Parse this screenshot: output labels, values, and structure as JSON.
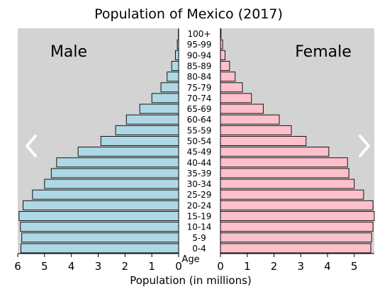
{
  "chart_data": {
    "type": "bar",
    "title": "Population of Mexico (2017)",
    "xlabel": "Population (in millions)",
    "ylabel": "Age",
    "xlim": [
      0,
      6
    ],
    "xticks": [
      "0",
      "1",
      "2",
      "3",
      "4",
      "5",
      "6"
    ],
    "grid": false,
    "panel_labels": [
      "Male",
      "Female"
    ],
    "categories": [
      "100+",
      "95-99",
      "90-94",
      "85-89",
      "80-84",
      "75-79",
      "70-74",
      "65-69",
      "60-64",
      "55-59",
      "50-54",
      "45-49",
      "40-44",
      "35-39",
      "30-34",
      "25-29",
      "20-24",
      "15-19",
      "10-14",
      "5-9",
      "0-4"
    ],
    "series": [
      {
        "name": "Male",
        "color": "#add8e6",
        "values": [
          0.01,
          0.05,
          0.12,
          0.26,
          0.43,
          0.66,
          1.0,
          1.45,
          1.95,
          2.35,
          2.9,
          3.75,
          4.55,
          4.75,
          5.0,
          5.45,
          5.8,
          5.95,
          5.9,
          5.85,
          5.88
        ]
      },
      {
        "name": "Female",
        "color": "#ffc0cb",
        "values": [
          0.02,
          0.08,
          0.17,
          0.34,
          0.55,
          0.82,
          1.16,
          1.6,
          2.2,
          2.65,
          3.2,
          4.05,
          4.75,
          4.8,
          5.0,
          5.35,
          5.7,
          5.85,
          5.7,
          5.65,
          5.62
        ]
      }
    ],
    "colors": {
      "panel_background": "#d3d3d3",
      "male": "#add8e6",
      "female": "#ffc0cb"
    }
  },
  "navigation": {
    "previous_icon": "chevron-left-icon",
    "next_icon": "chevron-right-icon"
  }
}
